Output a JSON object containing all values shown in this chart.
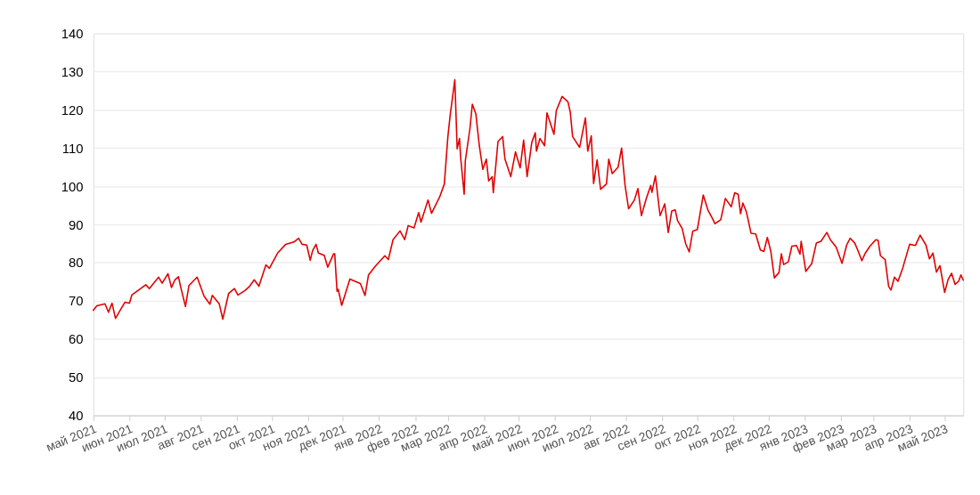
{
  "chart_data": {
    "type": "line",
    "x": [
      "2021-05-01",
      "2021-05-04",
      "2021-05-11",
      "2021-05-14",
      "2021-05-17",
      "2021-05-20",
      "2021-05-28",
      "2021-06-01",
      "2021-06-03",
      "2021-06-15",
      "2021-06-18",
      "2021-06-26",
      "2021-06-29",
      "2021-07-04",
      "2021-07-07",
      "2021-07-10",
      "2021-07-13",
      "2021-07-15",
      "2021-07-19",
      "2021-07-22",
      "2021-07-29",
      "2021-08-04",
      "2021-08-09",
      "2021-08-11",
      "2021-08-17",
      "2021-08-20",
      "2021-08-25",
      "2021-08-30",
      "2021-09-02",
      "2021-09-08",
      "2021-09-12",
      "2021-09-16",
      "2021-09-20",
      "2021-09-26",
      "2021-09-29",
      "2021-10-06",
      "2021-10-13",
      "2021-10-20",
      "2021-10-24",
      "2021-10-27",
      "2021-10-31",
      "2021-11-03",
      "2021-11-05",
      "2021-11-08",
      "2021-11-10",
      "2021-11-15",
      "2021-11-18",
      "2021-11-23",
      "2021-11-24",
      "2021-11-26",
      "2021-11-27",
      "2021-11-30",
      "2021-12-07",
      "2021-12-16",
      "2021-12-20",
      "2021-12-23",
      "2021-12-29",
      "2022-01-06",
      "2022-01-09",
      "2022-01-13",
      "2022-01-19",
      "2022-01-23",
      "2022-01-26",
      "2022-01-31",
      "2022-02-04",
      "2022-02-06",
      "2022-02-12",
      "2022-02-15",
      "2022-02-22",
      "2022-02-26",
      "2022-03-01",
      "2022-03-03",
      "2022-03-07",
      "2022-03-09",
      "2022-03-11",
      "2022-03-12",
      "2022-03-15",
      "2022-03-16",
      "2022-03-20",
      "2022-03-22",
      "2022-03-25",
      "2022-03-28",
      "2022-03-31",
      "2022-04-03",
      "2022-04-05",
      "2022-04-08",
      "2022-04-09",
      "2022-04-13",
      "2022-04-17",
      "2022-04-19",
      "2022-04-24",
      "2022-04-28",
      "2022-05-02",
      "2022-05-05",
      "2022-05-08",
      "2022-05-12",
      "2022-05-15",
      "2022-05-16",
      "2022-05-19",
      "2022-05-23",
      "2022-05-25",
      "2022-05-31",
      "2022-06-02",
      "2022-06-07",
      "2022-06-12",
      "2022-06-14",
      "2022-06-16",
      "2022-06-22",
      "2022-06-27",
      "2022-06-29",
      "2022-07-02",
      "2022-07-04",
      "2022-07-07",
      "2022-07-10",
      "2022-07-15",
      "2022-07-17",
      "2022-07-20",
      "2022-07-25",
      "2022-07-28",
      "2022-07-31",
      "2022-08-03",
      "2022-08-08",
      "2022-08-11",
      "2022-08-14",
      "2022-08-18",
      "2022-08-22",
      "2022-08-23",
      "2022-08-26",
      "2022-08-30",
      "2022-09-03",
      "2022-09-06",
      "2022-09-09",
      "2022-09-12",
      "2022-09-14",
      "2022-09-18",
      "2022-09-21",
      "2022-09-24",
      "2022-09-27",
      "2022-10-01",
      "2022-10-06",
      "2022-10-10",
      "2022-10-14",
      "2022-10-16",
      "2022-10-21",
      "2022-10-25",
      "2022-10-30",
      "2022-11-02",
      "2022-11-05",
      "2022-11-07",
      "2022-11-09",
      "2022-11-12",
      "2022-11-16",
      "2022-11-20",
      "2022-11-24",
      "2022-11-27",
      "2022-11-30",
      "2022-12-03",
      "2022-12-06",
      "2022-12-10",
      "2022-12-12",
      "2022-12-14",
      "2022-12-18",
      "2022-12-21",
      "2022-12-25",
      "2022-12-28",
      "2022-12-29",
      "2023-01-02",
      "2023-01-07",
      "2023-01-11",
      "2023-01-15",
      "2023-01-20",
      "2023-01-23",
      "2023-01-28",
      "2023-02-02",
      "2023-02-06",
      "2023-02-09",
      "2023-02-13",
      "2023-02-16",
      "2023-02-19",
      "2023-02-22",
      "2023-02-26",
      "2023-03-03",
      "2023-03-05",
      "2023-03-07",
      "2023-03-11",
      "2023-03-14",
      "2023-03-16",
      "2023-03-19",
      "2023-03-22",
      "2023-03-26",
      "2023-04-01",
      "2023-04-06",
      "2023-04-10",
      "2023-04-15",
      "2023-04-18",
      "2023-04-21",
      "2023-04-24",
      "2023-04-27",
      "2023-05-01",
      "2023-05-04",
      "2023-05-07",
      "2023-05-10",
      "2023-05-13",
      "2023-05-15",
      "2023-05-17"
    ],
    "series": [
      {
        "color": "#e00000",
        "values": [
          67.5,
          68.7,
          69.2,
          67,
          69.4,
          65.4,
          69.6,
          69.4,
          71.5,
          74.2,
          73.2,
          76.2,
          74.6,
          77.1,
          73.5,
          75.5,
          76.3,
          73.5,
          68.5,
          74,
          76.2,
          71.2,
          69.1,
          71.4,
          69.2,
          65.2,
          71.9,
          73.2,
          71.5,
          72.7,
          73.8,
          75.5,
          73.8,
          79.4,
          78.5,
          82.5,
          84.8,
          85.4,
          86.4,
          84.8,
          84.6,
          80.6,
          83.1,
          84.8,
          82.5,
          81.9,
          78.8,
          82.3,
          82.3,
          72.5,
          73,
          68.8,
          75.7,
          74.5,
          71.4,
          76.8,
          79.1,
          81.8,
          80.8,
          86,
          88.3,
          86,
          89.7,
          89.1,
          93.1,
          90.6,
          96.4,
          92.9,
          97.2,
          100.6,
          112.9,
          118.6,
          127.9,
          109.8,
          112.5,
          107.5,
          97.9,
          106.7,
          115.2,
          121.5,
          119,
          110.6,
          104.4,
          107.1,
          101.4,
          102.5,
          98.3,
          111.7,
          113,
          107.1,
          102.5,
          109,
          104.8,
          112.1,
          102.5,
          111.5,
          114,
          109.2,
          112.5,
          110.6,
          119.2,
          113.6,
          119.8,
          123.5,
          122.1,
          119.4,
          113,
          110.2,
          117.9,
          109.2,
          113.2,
          100.7,
          106.9,
          99.2,
          100.6,
          107.1,
          103.3,
          105,
          110,
          100.2,
          94.1,
          96.4,
          99.4,
          92.3,
          96.6,
          100.2,
          98.4,
          102.7,
          92.3,
          95.4,
          87.9,
          93.5,
          93.8,
          91,
          88.9,
          84.9,
          82.8,
          88.2,
          88.7,
          97.7,
          93.8,
          91.5,
          90.2,
          91.2,
          96.8,
          94.6,
          98.3,
          97.9,
          92.8,
          95.6,
          93.3,
          87.7,
          87.5,
          83.3,
          82.9,
          86.6,
          82.9,
          76,
          77.4,
          82.3,
          79.5,
          80.2,
          84.3,
          84.5,
          82.2,
          85.6,
          77.7,
          79.7,
          85.1,
          85.6,
          87.9,
          86,
          84.1,
          79.8,
          84.6,
          86.4,
          85.1,
          82.9,
          80.5,
          82.5,
          84.3,
          86,
          85.8,
          81.8,
          80.8,
          73.8,
          72.8,
          76.2,
          75.1,
          78.5,
          84.8,
          84.5,
          87.2,
          84.6,
          81,
          82.5,
          77.5,
          79.2,
          72.2,
          75.6,
          77.2,
          74.3,
          75.1,
          76.8,
          75.4
        ]
      }
    ],
    "xlim": [
      "2021-05-01",
      "2023-05-17"
    ],
    "xticks": [
      {
        "value": "2021-05-01",
        "label": "май 2021"
      },
      {
        "value": "2021-06-01",
        "label": "июн 2021"
      },
      {
        "value": "2021-07-01",
        "label": "июл 2021"
      },
      {
        "value": "2021-08-01",
        "label": "авг 2021"
      },
      {
        "value": "2021-09-01",
        "label": "сен 2021"
      },
      {
        "value": "2021-10-01",
        "label": "окт 2021"
      },
      {
        "value": "2021-11-01",
        "label": "ноя 2021"
      },
      {
        "value": "2021-12-01",
        "label": "дек 2021"
      },
      {
        "value": "2022-01-01",
        "label": "янв 2022"
      },
      {
        "value": "2022-02-01",
        "label": "фев 2022"
      },
      {
        "value": "2022-03-01",
        "label": "мар 2022"
      },
      {
        "value": "2022-04-01",
        "label": "апр 2022"
      },
      {
        "value": "2022-05-01",
        "label": "май 2022"
      },
      {
        "value": "2022-06-01",
        "label": "июн 2022"
      },
      {
        "value": "2022-07-01",
        "label": "июл 2022"
      },
      {
        "value": "2022-08-01",
        "label": "авг 2022"
      },
      {
        "value": "2022-09-01",
        "label": "сен 2022"
      },
      {
        "value": "2022-10-01",
        "label": "окт 2022"
      },
      {
        "value": "2022-11-01",
        "label": "ноя 2022"
      },
      {
        "value": "2022-12-01",
        "label": "дек 2022"
      },
      {
        "value": "2023-01-01",
        "label": "янв 2023"
      },
      {
        "value": "2023-02-01",
        "label": "фев 2023"
      },
      {
        "value": "2023-03-01",
        "label": "мар 2023"
      },
      {
        "value": "2023-04-01",
        "label": "апр 2023"
      },
      {
        "value": "2023-05-01",
        "label": "май 2023"
      }
    ],
    "ylim": [
      40,
      140
    ],
    "yticks": [
      40,
      50,
      60,
      70,
      80,
      90,
      100,
      110,
      120,
      130,
      140
    ],
    "grid": "y",
    "line_style": "solid"
  }
}
